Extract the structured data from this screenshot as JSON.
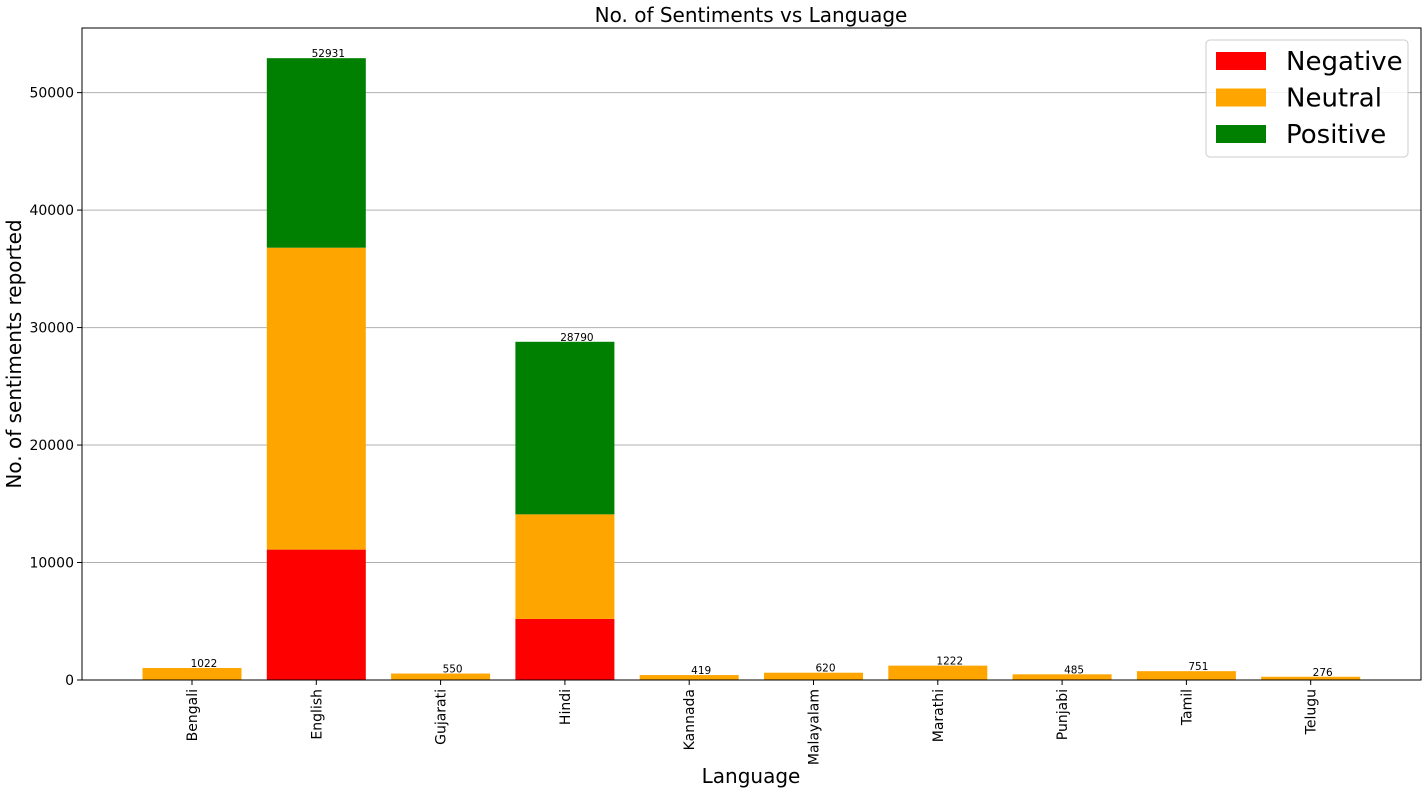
{
  "chart_data": {
    "type": "bar",
    "stacked": true,
    "title": "No. of Sentiments vs Language",
    "xlabel": "Language",
    "ylabel": "No. of sentiments reported",
    "categories": [
      "Bengali",
      "English",
      "Gujarati",
      "Hindi",
      "Kannada",
      "Malayalam",
      "Marathi",
      "Punjabi",
      "Tamil",
      "Telugu"
    ],
    "series": [
      {
        "name": "Negative",
        "color": "#ff0000",
        "values": [
          0,
          11100,
          0,
          5200,
          0,
          0,
          0,
          0,
          0,
          0
        ]
      },
      {
        "name": "Neutral",
        "color": "#ffa500",
        "values": [
          1022,
          25700,
          550,
          8900,
          419,
          620,
          1222,
          485,
          751,
          276
        ]
      },
      {
        "name": "Positive",
        "color": "#008000",
        "values": [
          0,
          16131,
          0,
          14690,
          0,
          0,
          0,
          0,
          0,
          0
        ]
      }
    ],
    "totals": [
      1022,
      52931,
      550,
      28790,
      419,
      620,
      1222,
      485,
      751,
      276
    ],
    "total_labels": [
      "1022",
      "52931",
      "550",
      "28790",
      "419",
      "620",
      "1222",
      "485",
      "751",
      "276"
    ],
    "ylim": [
      0,
      55500
    ],
    "yticks": [
      0,
      10000,
      20000,
      30000,
      40000,
      50000
    ],
    "ytick_labels": [
      "0",
      "10000",
      "20000",
      "30000",
      "40000",
      "50000"
    ],
    "grid": "horizontal",
    "legend_position": "top-right"
  }
}
